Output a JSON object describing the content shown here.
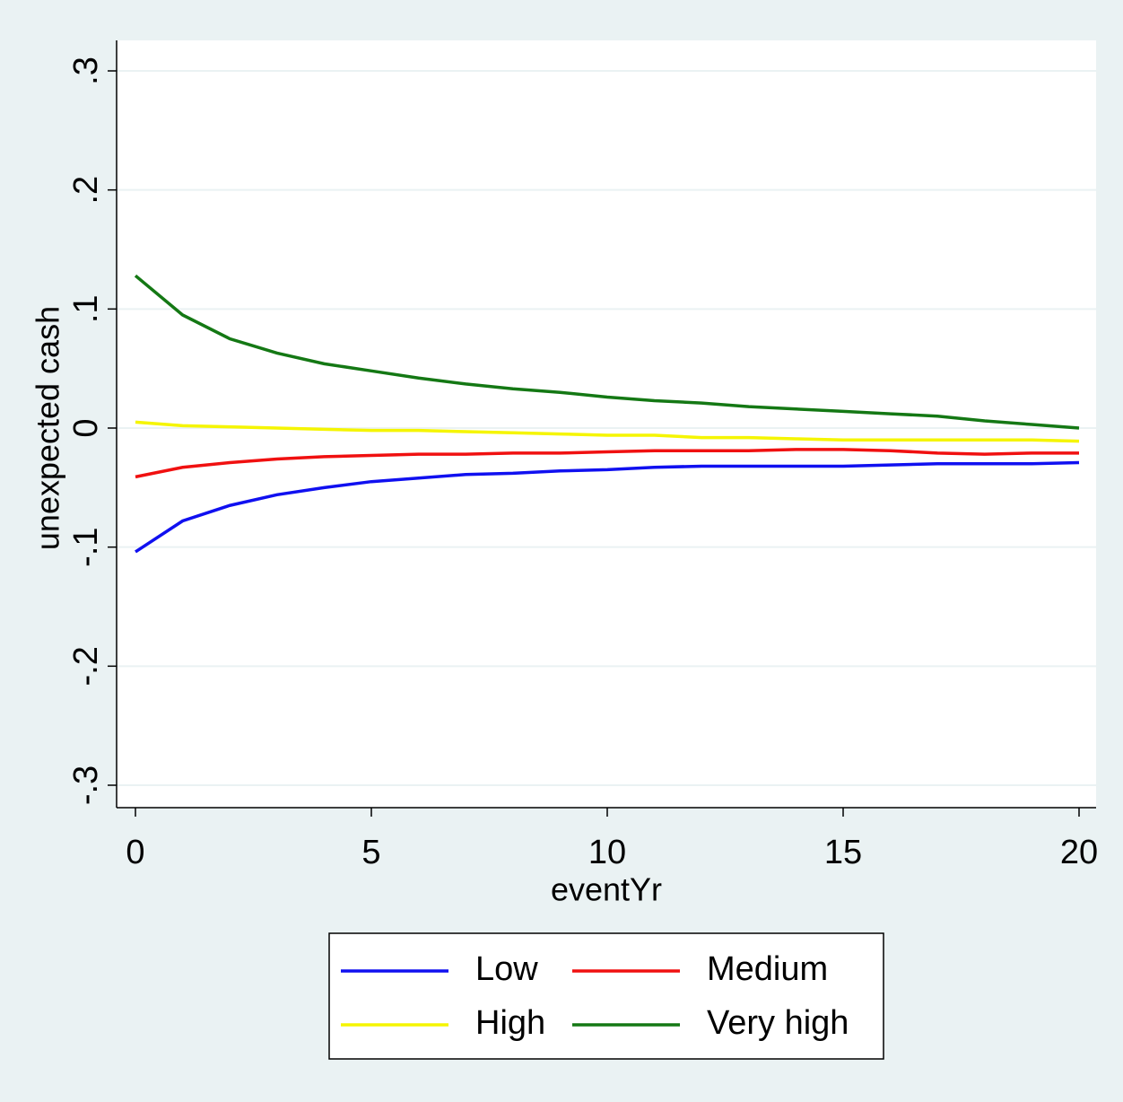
{
  "chart_data": {
    "type": "line",
    "x_label": "eventYr",
    "y_label": "unexpected cash",
    "x": [
      0,
      1,
      2,
      3,
      4,
      5,
      6,
      7,
      8,
      9,
      10,
      11,
      12,
      13,
      14,
      15,
      16,
      17,
      18,
      19,
      20
    ],
    "xlim": [
      0,
      20
    ],
    "xticks": [
      0,
      5,
      10,
      15,
      20
    ],
    "ylim": [
      -0.3,
      0.3
    ],
    "yticks": [
      {
        "value": -0.3,
        "label": "-.3"
      },
      {
        "value": -0.2,
        "label": "-.2"
      },
      {
        "value": -0.1,
        "label": "-.1"
      },
      0,
      {
        "value": 0.1,
        "label": ".1"
      },
      {
        "value": 0.2,
        "label": ".2"
      },
      {
        "value": 0.3,
        "label": ".3"
      }
    ],
    "grid": true,
    "legend_position": "bottom",
    "series": [
      {
        "name": "Low",
        "color": "#1010f0",
        "values": [
          -0.104,
          -0.078,
          -0.065,
          -0.056,
          -0.05,
          -0.045,
          -0.042,
          -0.039,
          -0.038,
          -0.036,
          -0.035,
          -0.033,
          -0.032,
          -0.032,
          -0.032,
          -0.032,
          -0.031,
          -0.03,
          -0.03,
          -0.03,
          -0.029
        ]
      },
      {
        "name": "Medium",
        "color": "#f01010",
        "values": [
          -0.041,
          -0.033,
          -0.029,
          -0.026,
          -0.024,
          -0.023,
          -0.022,
          -0.022,
          -0.021,
          -0.021,
          -0.02,
          -0.019,
          -0.019,
          -0.019,
          -0.018,
          -0.018,
          -0.019,
          -0.021,
          -0.022,
          -0.021,
          -0.021
        ]
      },
      {
        "name": "High",
        "color": "#f5f500",
        "values": [
          0.005,
          0.002,
          0.001,
          0.0,
          -0.001,
          -0.002,
          -0.002,
          -0.003,
          -0.004,
          -0.005,
          -0.006,
          -0.006,
          -0.008,
          -0.008,
          -0.009,
          -0.01,
          -0.01,
          -0.01,
          -0.01,
          -0.01,
          -0.011
        ]
      },
      {
        "name": "Very high",
        "color": "#147814",
        "values": [
          0.128,
          0.095,
          0.075,
          0.063,
          0.054,
          0.048,
          0.042,
          0.037,
          0.033,
          0.03,
          0.026,
          0.023,
          0.021,
          0.018,
          0.016,
          0.014,
          0.012,
          0.01,
          0.006,
          0.003,
          0.0
        ]
      }
    ]
  }
}
